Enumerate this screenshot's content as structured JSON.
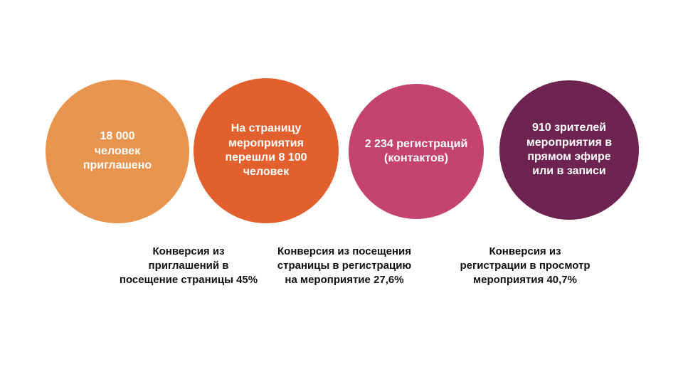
{
  "background_color": "#ffffff",
  "text_color_on_circles": "#ffffff",
  "text_color_labels": "#111111",
  "stages": [
    {
      "name": "invited",
      "text": "18 000\nчеловек\nприглашено",
      "value": 18000,
      "color": "#E8934E"
    },
    {
      "name": "page-visits",
      "text": "На страницу\nмероприятия\nперешли 8 100\nчеловек",
      "value": 8100,
      "color": "#E2602E"
    },
    {
      "name": "registrations",
      "text": "2 234 регистраций\n(контактов)",
      "value": 2234,
      "color": "#C5446F"
    },
    {
      "name": "viewers",
      "text": "910 зрителей\nмероприятия в\nпрямом эфире\nили в записи",
      "value": 910,
      "color": "#6D2450"
    }
  ],
  "conversions": [
    {
      "text": "Конверсия из\nприглашений в\nпосещение страницы 45%",
      "value": "45%"
    },
    {
      "text": "Конверсия из посещения\nстраницы в регистрацию\nна мероприятие 27,6%",
      "value": "27,6%"
    },
    {
      "text": "Конверсия из\nрегистрации в просмотр\nмероприятия 40,7%",
      "value": "40,7%"
    }
  ]
}
